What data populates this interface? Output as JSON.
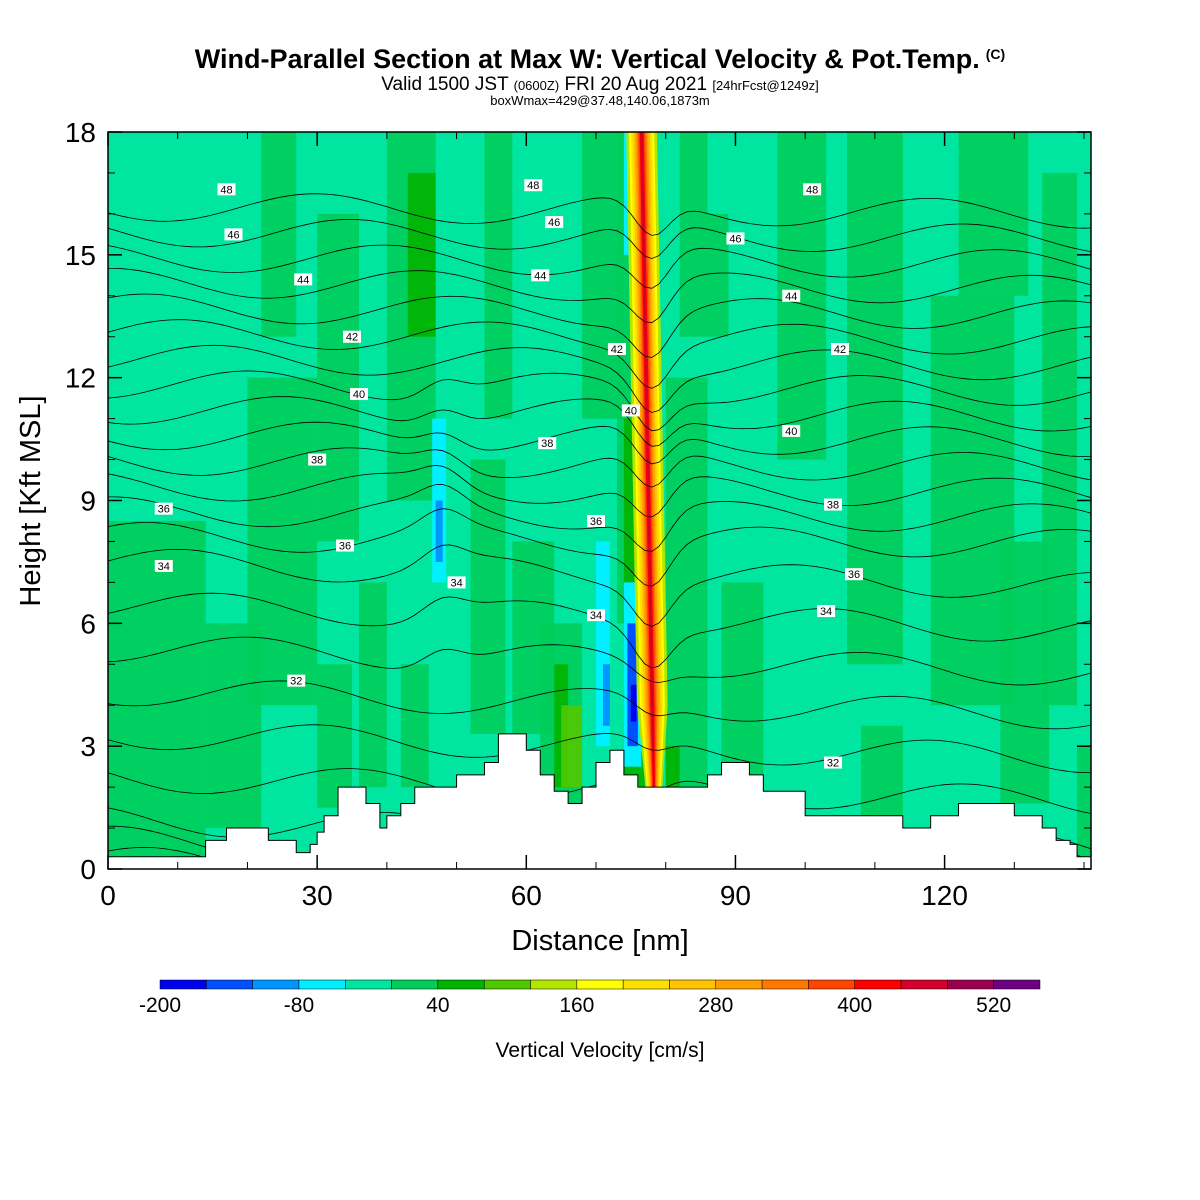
{
  "header": {
    "title": "Wind-Parallel Section at Max W: Vertical Velocity & Pot.Temp.",
    "copyright": "(C)",
    "valid_prefix": "Valid 1500 JST",
    "valid_utc": "(0600Z)",
    "valid_date": "FRI 20 Aug 2021",
    "forecast": "[24hrFcst@1249z]",
    "box_info": "boxWmax=429@37.48,140.06,1873m"
  },
  "chart_data": {
    "type": "heatmap",
    "xlabel": "Distance [nm]",
    "ylabel": "Height [Kft MSL]",
    "xlim": [
      0,
      141
    ],
    "ylim": [
      0,
      18
    ],
    "x_ticks": [
      0,
      30,
      60,
      90,
      120
    ],
    "y_ticks": [
      0,
      3,
      6,
      9,
      12,
      15,
      18
    ],
    "colorbar": {
      "label": "Vertical Velocity [cm/s]",
      "colors": [
        "#0000f0",
        "#0050ff",
        "#0096ff",
        "#00f0ff",
        "#00e6a0",
        "#00cd5a",
        "#00b400",
        "#50c800",
        "#b4e600",
        "#ffff00",
        "#ffe100",
        "#ffc300",
        "#ffa000",
        "#ff7800",
        "#ff4600",
        "#ff0000",
        "#d2002d",
        "#9b0050",
        "#6e0082"
      ],
      "tick_values": [
        -200,
        -80,
        40,
        160,
        280,
        400,
        520
      ],
      "tick_labels": [
        "-200",
        "-80",
        "40",
        "160",
        "280",
        "400",
        "520"
      ]
    },
    "max_updraft": {
      "value_cm_s": 429,
      "distance_nm": [
        76,
        80
      ],
      "height_kft": [
        2.0,
        18.0
      ]
    },
    "terrain": {
      "distance_nm": [
        0,
        14,
        17,
        20,
        23,
        27,
        29,
        30,
        31,
        33,
        35,
        37,
        39,
        40,
        42,
        44,
        46,
        50,
        54,
        56,
        58,
        60,
        62,
        64,
        66,
        68,
        70,
        72,
        74,
        76,
        78,
        80,
        82,
        84,
        86,
        88,
        90,
        92,
        94,
        100,
        106,
        112,
        114,
        118,
        122,
        126,
        128,
        130,
        132,
        134,
        136,
        138,
        139,
        141
      ],
      "height_kft": [
        0.3,
        0.7,
        1.0,
        1.0,
        0.7,
        0.4,
        0.6,
        0.9,
        1.3,
        2.0,
        2.0,
        1.6,
        1.0,
        1.3,
        1.6,
        2.0,
        2.0,
        2.3,
        2.6,
        3.3,
        3.3,
        2.9,
        2.3,
        1.9,
        1.6,
        2.0,
        2.6,
        2.9,
        2.3,
        2.0,
        2.0,
        2.0,
        2.0,
        2.0,
        2.3,
        2.6,
        2.6,
        2.3,
        1.9,
        1.3,
        1.3,
        1.3,
        1.0,
        1.3,
        1.6,
        1.6,
        1.6,
        1.3,
        1.3,
        1.0,
        0.7,
        0.6,
        0.3,
        0.3
      ]
    },
    "isentropes": {
      "levels": [
        28,
        29,
        30,
        31,
        32,
        33,
        34,
        35,
        36,
        37,
        38,
        39,
        40,
        41,
        42,
        43,
        44,
        45,
        46,
        47,
        48,
        49,
        50
      ],
      "labels": [
        {
          "text": "48",
          "x": 17,
          "y": 16.6
        },
        {
          "text": "48",
          "x": 61,
          "y": 16.7
        },
        {
          "text": "48",
          "x": 101,
          "y": 16.6
        },
        {
          "text": "46",
          "x": 18,
          "y": 15.5
        },
        {
          "text": "46",
          "x": 64,
          "y": 15.8
        },
        {
          "text": "46",
          "x": 90,
          "y": 15.4
        },
        {
          "text": "44",
          "x": 28,
          "y": 14.4
        },
        {
          "text": "44",
          "x": 62,
          "y": 14.5
        },
        {
          "text": "44",
          "x": 98,
          "y": 14.0
        },
        {
          "text": "42",
          "x": 35,
          "y": 13.0
        },
        {
          "text": "42",
          "x": 73,
          "y": 12.7
        },
        {
          "text": "42",
          "x": 105,
          "y": 12.7
        },
        {
          "text": "40",
          "x": 36,
          "y": 11.6
        },
        {
          "text": "40",
          "x": 75,
          "y": 11.2
        },
        {
          "text": "40",
          "x": 98,
          "y": 10.7
        },
        {
          "text": "38",
          "x": 30,
          "y": 10.0
        },
        {
          "text": "38",
          "x": 63,
          "y": 10.4
        },
        {
          "text": "38",
          "x": 104,
          "y": 8.9
        },
        {
          "text": "36",
          "x": 8,
          "y": 8.8
        },
        {
          "text": "36",
          "x": 34,
          "y": 7.9
        },
        {
          "text": "36",
          "x": 70,
          "y": 8.5
        },
        {
          "text": "36",
          "x": 107,
          "y": 7.2
        },
        {
          "text": "34",
          "x": 8,
          "y": 7.4
        },
        {
          "text": "34",
          "x": 50,
          "y": 7.0
        },
        {
          "text": "34",
          "x": 70,
          "y": 6.2
        },
        {
          "text": "34",
          "x": 103,
          "y": 6.3
        },
        {
          "text": "32",
          "x": 27,
          "y": 4.6
        },
        {
          "text": "32",
          "x": 104,
          "y": 2.6
        }
      ]
    }
  }
}
